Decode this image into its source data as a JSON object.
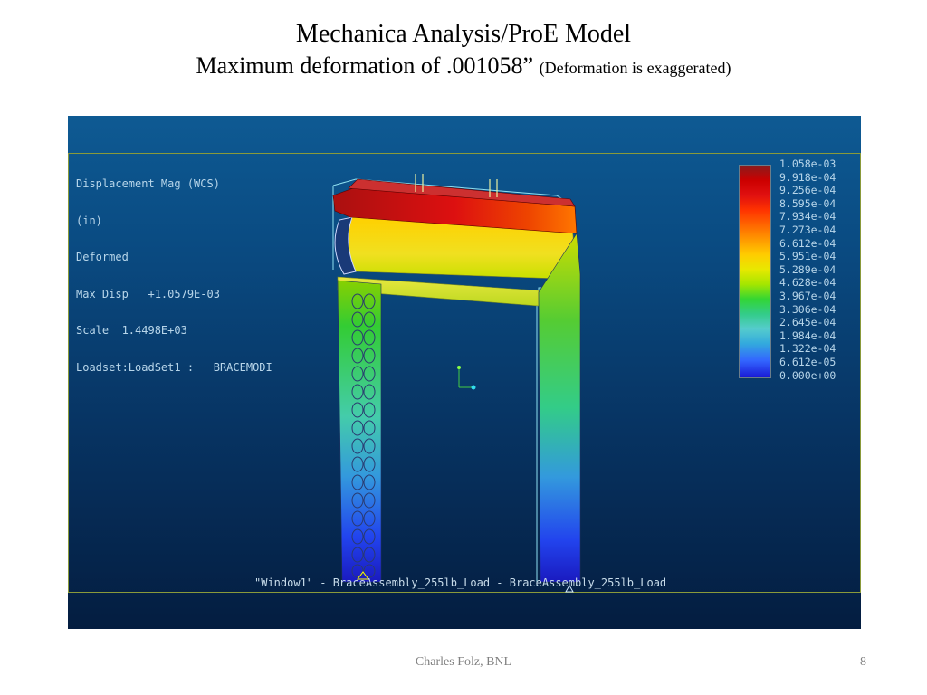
{
  "slide": {
    "title": "Mechanica Analysis/ProE Model",
    "subtitle": "Maximum deformation of .001058”",
    "subtitle_note": "(Deformation is exaggerated)",
    "footer": "Charles Folz, BNL",
    "page_number": "8"
  },
  "viewport": {
    "info_lines": [
      "Displacement Mag (WCS)",
      "(in)",
      "Deformed",
      "Max Disp   +1.0579E-03",
      "Scale  1.4498E+03",
      "Loadset:LoadSet1 :   BRACEMODI"
    ],
    "caption": "\"Window1\" - BraceAssembly_255lb_Load - BraceAssembly_255lb_Load",
    "legend": [
      "1.058e-03",
      "9.918e-04",
      "9.256e-04",
      "8.595e-04",
      "7.934e-04",
      "7.273e-04",
      "6.612e-04",
      "5.951e-04",
      "5.289e-04",
      "4.628e-04",
      "3.967e-04",
      "3.306e-04",
      "2.645e-04",
      "1.984e-04",
      "1.322e-04",
      "6.612e-05",
      "0.000e+00"
    ]
  }
}
